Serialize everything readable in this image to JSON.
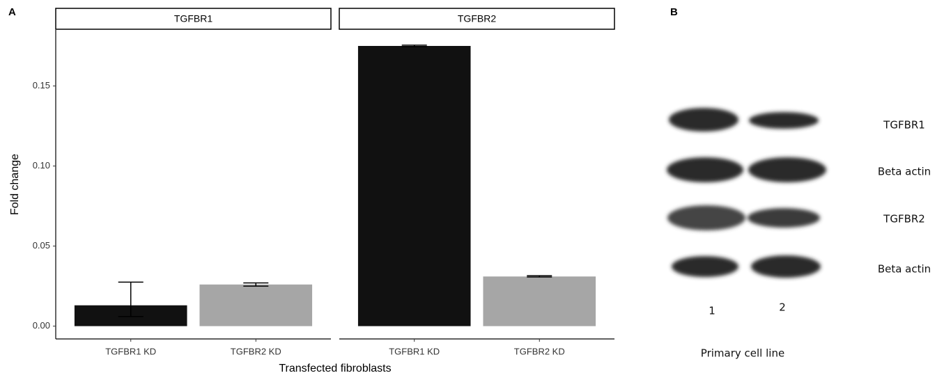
{
  "panel_a_label": "A",
  "ylabel": "Fold change",
  "xlabel": "Transfected fibroblasts",
  "chart_data": [
    {
      "type": "bar",
      "title": "TGFBR1",
      "categories": [
        "TGFBR1 KD",
        "TGFBR2 KD"
      ],
      "values": [
        0.013,
        0.026
      ],
      "ci_low": [
        0.006,
        0.025
      ],
      "ci_high": [
        0.0275,
        0.027
      ],
      "colors": [
        "#111111",
        "#a6a6a6"
      ],
      "ylim": [
        -0.008,
        0.185
      ],
      "yticks": [
        {
          "value": 0,
          "label": "0.00"
        },
        {
          "value": 0.05,
          "label": "0.05"
        },
        {
          "value": 0.1,
          "label": "0.10"
        },
        {
          "value": 0.15,
          "label": "0.15"
        }
      ]
    },
    {
      "type": "bar",
      "title": "TGFBR2",
      "categories": [
        "TGFBR1 KD",
        "TGFBR2 KD"
      ],
      "values": [
        0.175,
        0.031
      ],
      "ci_low": [
        0.1745,
        0.0307
      ],
      "ci_high": [
        0.1755,
        0.0315
      ],
      "colors": [
        "#111111",
        "#a6a6a6"
      ],
      "ylim": [
        -0.008,
        0.185
      ]
    }
  ],
  "blot": {
    "panel_label": "B",
    "rows": [
      "TGFBR1",
      "Beta actin",
      "TGFBR2",
      "Beta actin"
    ],
    "lanes": [
      "1",
      "2"
    ],
    "lane_title": "Primary cell line"
  }
}
